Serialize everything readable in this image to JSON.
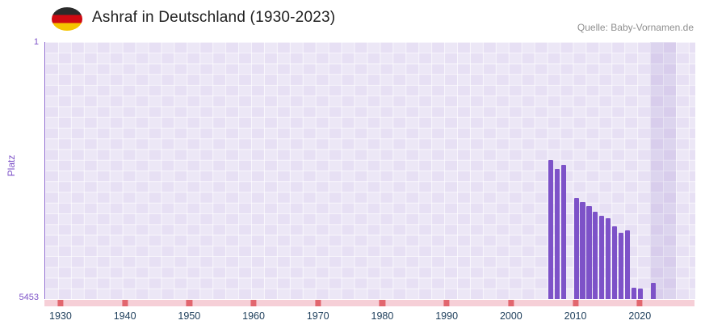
{
  "header": {
    "title": "Ashraf in Deutschland (1930-2023)",
    "source": "Quelle: Baby-Vornamen.de",
    "flag_icon": "germany-flag",
    "flag_colors": [
      "#2b2b2b",
      "#d00a12",
      "#f5c400"
    ]
  },
  "chart_data": {
    "type": "bar",
    "title": "Ashraf in Deutschland (1930-2023)",
    "xlabel": "",
    "ylabel": "Platz",
    "y_axis": {
      "min": 1,
      "max": 5453,
      "inverted": true,
      "tick_labels": [
        "1",
        "5453"
      ]
    },
    "x_domain": [
      1928,
      2029
    ],
    "x_ticks": [
      1930,
      1940,
      1950,
      1960,
      1970,
      1980,
      1990,
      2000,
      2010,
      2020
    ],
    "bar_color": "#7d52c8",
    "grid": true,
    "legend": "none",
    "highlight_band": {
      "from": 2022,
      "to": 2026
    },
    "series": [
      {
        "name": "Platz",
        "points": [
          {
            "year": 2006,
            "rank": 2500
          },
          {
            "year": 2007,
            "rank": 2690
          },
          {
            "year": 2008,
            "rank": 2610
          },
          {
            "year": 2010,
            "rank": 3310
          },
          {
            "year": 2011,
            "rank": 3400
          },
          {
            "year": 2012,
            "rank": 3480
          },
          {
            "year": 2013,
            "rank": 3600
          },
          {
            "year": 2014,
            "rank": 3690
          },
          {
            "year": 2015,
            "rank": 3740
          },
          {
            "year": 2016,
            "rank": 3910
          },
          {
            "year": 2017,
            "rank": 4050
          },
          {
            "year": 2018,
            "rank": 4000
          },
          {
            "year": 2019,
            "rank": 5210
          },
          {
            "year": 2020,
            "rank": 5230
          },
          {
            "year": 2022,
            "rank": 5110
          }
        ]
      }
    ],
    "axis_strip": {
      "color": "#f6cfd7",
      "marker_color": "#e2666e",
      "marker_years": [
        1930,
        1940,
        1950,
        1960,
        1970,
        1980,
        1990,
        2000,
        2010,
        2020
      ]
    }
  },
  "colors": {
    "accent_purple": "#7d52c8",
    "x_label": "#1c3d5a",
    "plot_background": "#e7e0f4",
    "title_text": "#212121",
    "source_text": "#8f8f8f"
  }
}
